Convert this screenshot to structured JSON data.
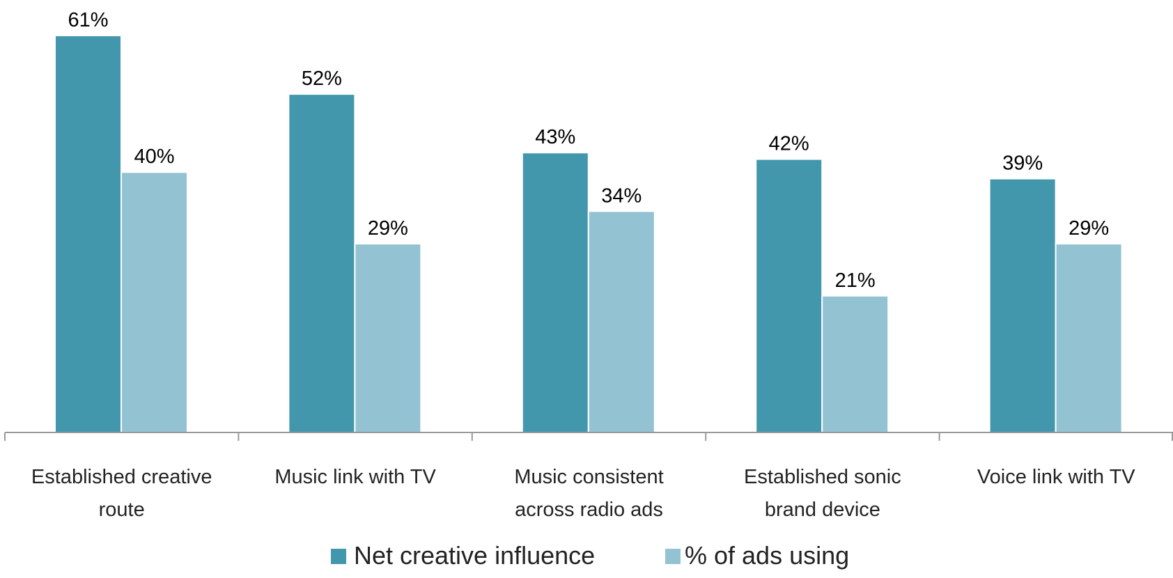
{
  "chart_data": {
    "type": "bar",
    "title": "",
    "xlabel": "",
    "ylabel": "",
    "ylim": [
      0,
      61
    ],
    "grid": false,
    "legend_position": "bottom",
    "categories": [
      [
        "Established creative",
        "route"
      ],
      [
        "Music link with TV"
      ],
      [
        "Music consistent",
        "across radio ads"
      ],
      [
        "Established sonic",
        "brand device"
      ],
      [
        "Voice link with TV"
      ]
    ],
    "series": [
      {
        "name": "Net creative influence",
        "color": "#4397ad",
        "values": [
          61,
          52,
          43,
          42,
          39
        ],
        "labels": [
          "61%",
          "52%",
          "43%",
          "42%",
          "39%"
        ]
      },
      {
        "name": "% of ads using",
        "color": "#93c3d3",
        "values": [
          40,
          29,
          34,
          21,
          29
        ],
        "labels": [
          "40%",
          "29%",
          "34%",
          "21%",
          "29%"
        ]
      }
    ],
    "axis_color": "#999999"
  }
}
